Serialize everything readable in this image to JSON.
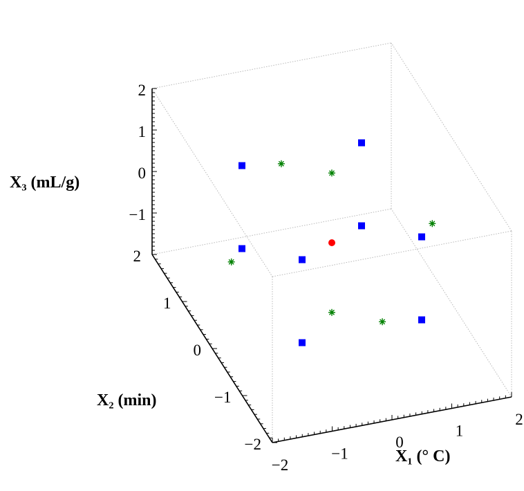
{
  "chart_data": {
    "type": "scatter3d",
    "title": "",
    "axes": {
      "x": {
        "label": "X₁ (° C)",
        "range": [
          -2,
          2
        ],
        "ticks": [
          "−2",
          "−1",
          "0",
          "1",
          "2"
        ]
      },
      "y": {
        "label": "X₂ (min)",
        "range": [
          -2,
          2
        ],
        "ticks": [
          "−2",
          "−1",
          "0",
          "1",
          "2"
        ]
      },
      "z": {
        "label": "X₃ (mL/g)",
        "range": [
          -2,
          2
        ],
        "ticks": [
          "−1",
          "0",
          "1",
          "2"
        ]
      }
    },
    "grid": false,
    "legend": "none",
    "series": [
      {
        "marker": "square",
        "color": "#0000ff",
        "points": [
          [
            -1,
            -1,
            -1
          ],
          [
            1,
            -1,
            -1
          ],
          [
            -1,
            1,
            -1
          ],
          [
            1,
            1,
            -1
          ],
          [
            -1,
            -1,
            1
          ],
          [
            1,
            -1,
            1
          ],
          [
            -1,
            1,
            1
          ],
          [
            1,
            1,
            1
          ]
        ]
      },
      {
        "marker": "asterisk",
        "color": "#008000",
        "points": [
          [
            -1.68,
            0,
            0
          ],
          [
            1.68,
            0,
            0
          ],
          [
            0,
            -1.68,
            0
          ],
          [
            0,
            1.68,
            0
          ],
          [
            0,
            0,
            -1.68
          ],
          [
            0,
            0,
            1.68
          ]
        ]
      },
      {
        "marker": "circle",
        "color": "#ff0000",
        "points": [
          [
            0,
            0,
            0
          ]
        ]
      }
    ]
  }
}
